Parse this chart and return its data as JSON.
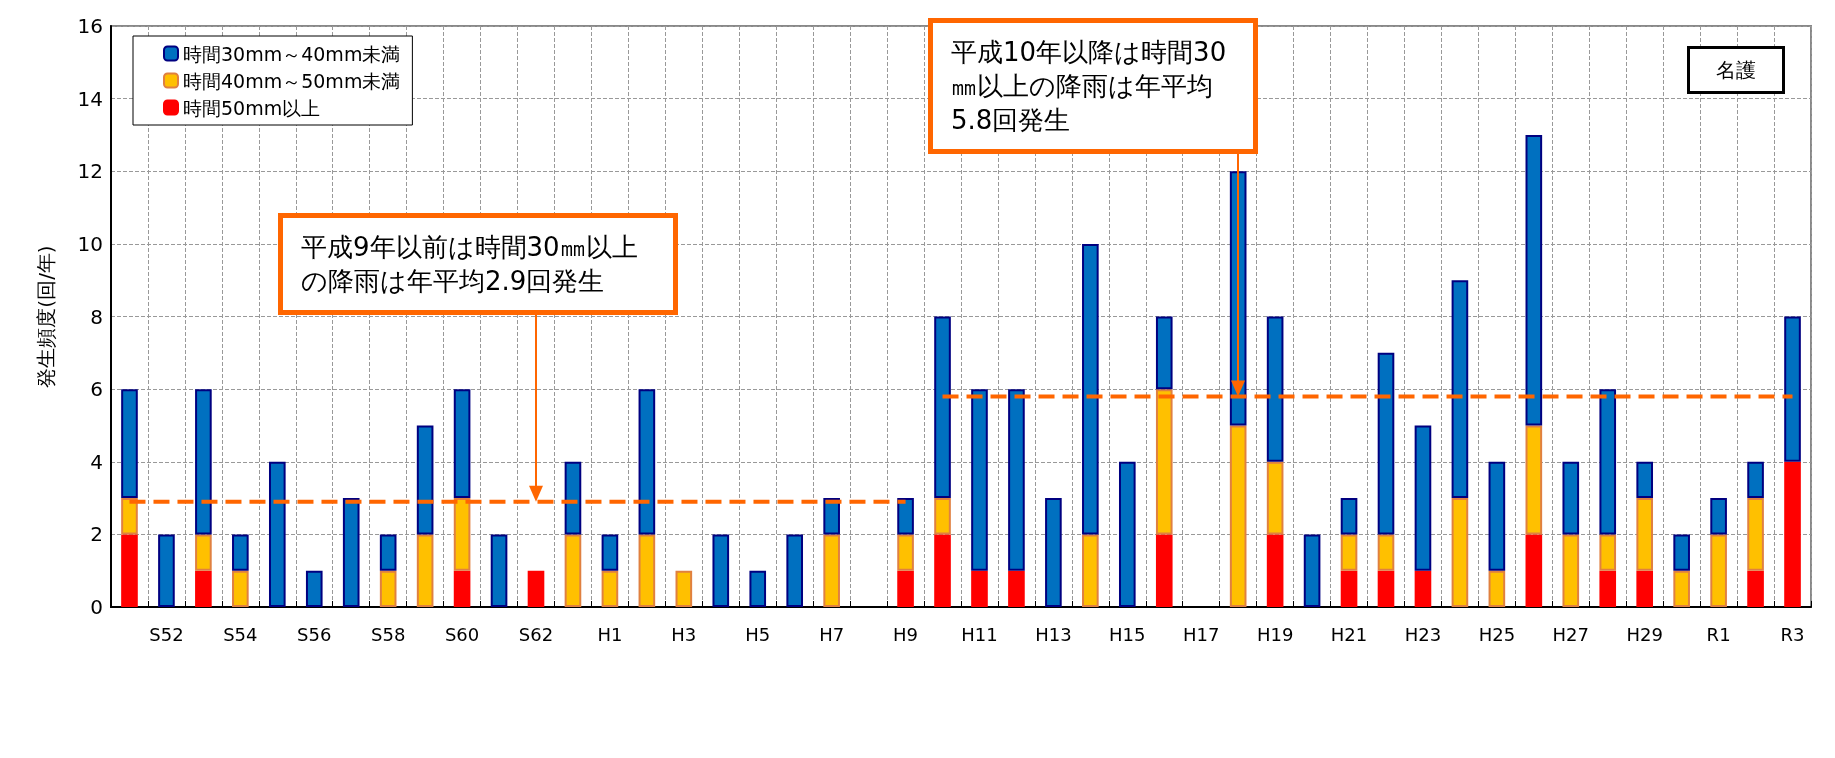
{
  "chart_data": {
    "type": "bar",
    "stacked": true,
    "ylabel": "発生頻度(回/年)",
    "categories": [
      null,
      "S52",
      null,
      "S54",
      null,
      "S56",
      null,
      "S58",
      null,
      "S60",
      null,
      "S62",
      null,
      "H1",
      null,
      "H3",
      null,
      "H5",
      null,
      "H7",
      null,
      "H9",
      null,
      "H11",
      null,
      "H13",
      null,
      "H15",
      null,
      "H17",
      null,
      "H19",
      null,
      "H21",
      null,
      "H23",
      null,
      "H25",
      null,
      "H27",
      null,
      "H29",
      null,
      "R1",
      null,
      "R3"
    ],
    "series": [
      {
        "name": "時間50mm以上",
        "color": "#ff0000",
        "values": [
          2,
          0,
          1,
          0,
          0,
          0,
          0,
          0,
          0,
          1,
          0,
          1,
          0,
          0,
          0,
          0,
          0,
          0,
          0,
          0,
          0,
          1,
          2,
          1,
          1,
          0,
          0,
          0,
          2,
          0,
          0,
          2,
          0,
          1,
          1,
          1,
          0,
          0,
          2,
          0,
          1,
          1,
          0,
          0,
          1,
          4
        ]
      },
      {
        "name": "時間40mm～50mm未満",
        "color": "#ffc000",
        "values": [
          1,
          0,
          1,
          1,
          0,
          0,
          0,
          1,
          2,
          2,
          0,
          0,
          2,
          1,
          2,
          1,
          0,
          0,
          0,
          2,
          0,
          1,
          1,
          0,
          0,
          0,
          2,
          0,
          4,
          0,
          5,
          2,
          0,
          1,
          1,
          0,
          3,
          1,
          3,
          2,
          1,
          2,
          1,
          2,
          2,
          0
        ]
      },
      {
        "name": "時間30mm～40mm未満",
        "color": "#0070c0",
        "values": [
          3,
          2,
          4,
          1,
          4,
          1,
          3,
          1,
          3,
          3,
          2,
          0,
          2,
          1,
          4,
          0,
          2,
          1,
          2,
          1,
          0,
          1,
          5,
          5,
          5,
          3,
          8,
          4,
          2,
          0,
          7,
          4,
          2,
          1,
          5,
          4,
          6,
          3,
          8,
          2,
          4,
          1,
          1,
          1,
          1,
          4
        ]
      },
      {
        "type": "line",
        "color": "#ff6600",
        "line_style": "dashed",
        "marker": "none",
        "values": [
          2.9,
          2.9,
          2.9,
          2.9,
          2.9,
          2.9,
          2.9,
          2.9,
          2.9,
          2.9,
          2.9,
          2.9,
          2.9,
          2.9,
          2.9,
          2.9,
          2.9,
          2.9,
          2.9,
          2.9,
          2.9,
          2.9,
          null,
          null,
          null,
          null,
          null,
          null,
          null,
          null,
          null,
          null,
          null,
          null,
          null,
          null,
          null,
          null,
          null,
          null,
          null,
          null,
          null,
          null,
          null,
          null
        ]
      },
      {
        "type": "line",
        "color": "#ff6600",
        "line_style": "dashed",
        "marker": "none",
        "values": [
          null,
          null,
          null,
          null,
          null,
          null,
          null,
          null,
          null,
          null,
          null,
          null,
          null,
          null,
          null,
          null,
          null,
          null,
          null,
          null,
          null,
          null,
          5.8,
          5.8,
          5.8,
          5.8,
          5.8,
          5.8,
          5.8,
          5.8,
          5.8,
          5.8,
          5.8,
          5.8,
          5.8,
          5.8,
          5.8,
          5.8,
          5.8,
          5.8,
          5.8,
          5.8,
          5.8,
          5.8,
          5.8,
          5.8
        ]
      }
    ],
    "ylim": [
      0,
      16
    ],
    "yticks": [
      0,
      2,
      4,
      6,
      8,
      10,
      12,
      14,
      16
    ],
    "grid": true,
    "legend": "top left",
    "annotations": [
      "平成9年以前は時間30㎜以上の降雨は年平均2.9回発生",
      "平成10年以降は時間30㎜以上の降雨は年平均5.8回発生",
      "名護"
    ]
  }
}
